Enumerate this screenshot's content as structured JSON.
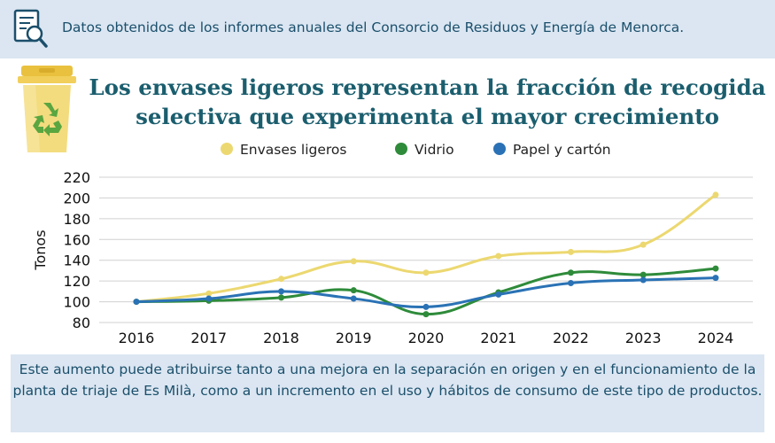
{
  "source_note": "Datos obtenidos de los informes anuales del Consorcio de Residuos y Energía de Menorca.",
  "title_line1": "Los envases ligeros representan la fracción de recogida",
  "title_line2": "selectiva que experimenta el mayor crecimiento",
  "footer_note": "Este aumento puede atribuirse tanto a una mejora en la separación en origen y en el funcionamiento de la planta de triaje de Es Milà, como a un incremento en el uso y hábitos de consumo de este tipo de productos.",
  "icons": {
    "document": "document-search-icon",
    "bin": "recycling-bin-icon"
  },
  "colors": {
    "accent_banner": "#dbe6f2",
    "title": "#1b5e6e",
    "envases": "#ecd870",
    "vidrio": "#2e8b3a",
    "papel": "#2a72b5"
  },
  "chart_data": {
    "type": "line",
    "title": "",
    "xlabel": "",
    "ylabel": "Tonos",
    "ylim": [
      80,
      220
    ],
    "yticks": [
      80,
      100,
      120,
      140,
      160,
      180,
      200,
      220
    ],
    "grid": true,
    "legend_position": "top",
    "x": [
      "2016",
      "2017",
      "2018",
      "2019",
      "2020",
      "2021",
      "2022",
      "2023",
      "2024"
    ],
    "series": [
      {
        "name": "Envases ligeros",
        "color": "#ecd870",
        "values": [
          100,
          108,
          122,
          139,
          128,
          144,
          148,
          155,
          203
        ]
      },
      {
        "name": "Vidrio",
        "color": "#2e8b3a",
        "values": [
          100,
          101,
          104,
          111,
          88,
          109,
          128,
          126,
          132
        ]
      },
      {
        "name": "Papel y cartón",
        "color": "#2a72b5",
        "values": [
          100,
          103,
          110,
          103,
          95,
          107,
          118,
          121,
          123
        ]
      }
    ]
  }
}
